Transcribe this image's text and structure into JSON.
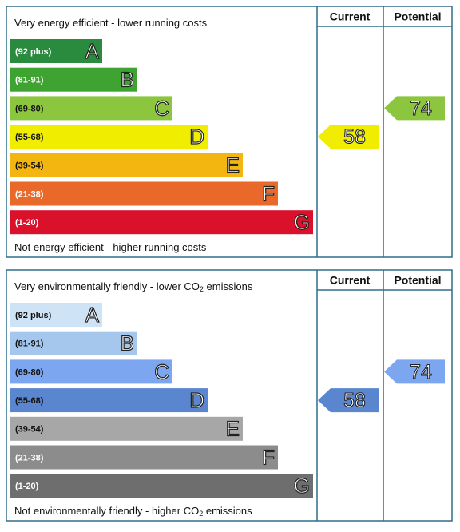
{
  "panels": [
    {
      "top_label": [
        "Very energy efficient - lower running costs"
      ],
      "bottom_label": [
        "Not energy efficient - higher running costs"
      ],
      "current_header": "Current",
      "potential_header": "Potential",
      "bands": [
        {
          "range": "(92 plus)",
          "letter": "A",
          "color": "#2a8a3e",
          "text_color": "#ffffff"
        },
        {
          "range": "(81-91)",
          "letter": "B",
          "color": "#3ea331",
          "text_color": "#ffffff"
        },
        {
          "range": "(69-80)",
          "letter": "C",
          "color": "#8cc63f",
          "text_color": "#111111"
        },
        {
          "range": "(55-68)",
          "letter": "D",
          "color": "#f0ed00",
          "text_color": "#111111"
        },
        {
          "range": "(39-54)",
          "letter": "E",
          "color": "#f3b50f",
          "text_color": "#111111"
        },
        {
          "range": "(21-38)",
          "letter": "F",
          "color": "#e8692a",
          "text_color": "#ffffff"
        },
        {
          "range": "(1-20)",
          "letter": "G",
          "color": "#d9112b",
          "text_color": "#ffffff"
        }
      ],
      "current": "58",
      "potential": "74"
    },
    {
      "top_label": [
        "Very environmentally friendly - lower CO",
        "2",
        " emissions"
      ],
      "bottom_label": [
        "Not environmentally friendly - higher CO",
        "2",
        " emissions"
      ],
      "current_header": "Current",
      "potential_header": "Potential",
      "bands": [
        {
          "range": "(92 plus)",
          "letter": "A",
          "color": "#cfe3f6",
          "text_color": "#111111"
        },
        {
          "range": "(81-91)",
          "letter": "B",
          "color": "#a5c7ee",
          "text_color": "#111111"
        },
        {
          "range": "(69-80)",
          "letter": "C",
          "color": "#7ca7f0",
          "text_color": "#111111"
        },
        {
          "range": "(55-68)",
          "letter": "D",
          "color": "#5a86cf",
          "text_color": "#111111"
        },
        {
          "range": "(39-54)",
          "letter": "E",
          "color": "#a7a7a7",
          "text_color": "#111111"
        },
        {
          "range": "(21-38)",
          "letter": "F",
          "color": "#8c8c8c",
          "text_color": "#ffffff"
        },
        {
          "range": "(1-20)",
          "letter": "G",
          "color": "#6e6e6e",
          "text_color": "#ffffff"
        }
      ],
      "current": "58",
      "potential": "74"
    }
  ]
}
